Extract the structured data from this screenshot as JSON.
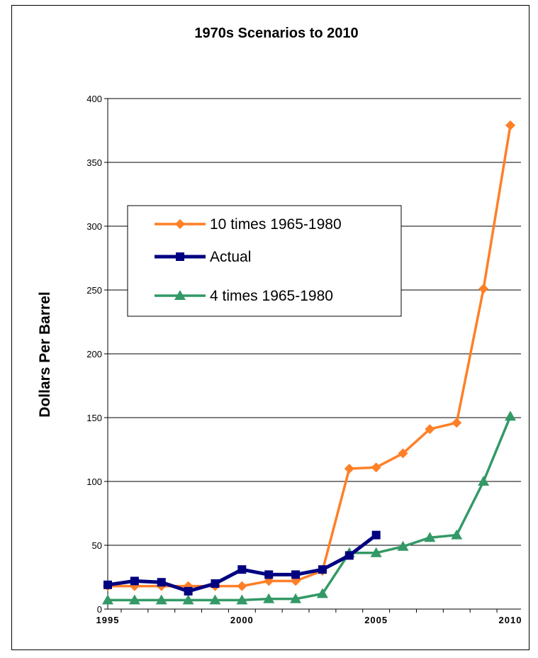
{
  "chart_data": {
    "type": "line",
    "title": "1970s Scenarios to 2010",
    "xlabel": "",
    "ylabel": "Dollars Per Barrel",
    "x": [
      1995,
      1996,
      1997,
      1998,
      1999,
      2000,
      2001,
      2002,
      2003,
      2004,
      2005,
      2006,
      2007,
      2008,
      2009,
      2010
    ],
    "xlim": [
      1995,
      2010
    ],
    "x_tick_labels": [
      "1995",
      "2000",
      "2005",
      "2010"
    ],
    "ylim": [
      0,
      400
    ],
    "y_tick_labels": [
      "0",
      "50",
      "100",
      "150",
      "200",
      "250",
      "300",
      "350",
      "400"
    ],
    "grid": "horizontal",
    "legend_placement": "upper-left inside plot",
    "series": [
      {
        "name": "10 times 1965-1980",
        "color": "#FF7F27",
        "marker": "diamond",
        "values": [
          18,
          18,
          18,
          18,
          18,
          18,
          22,
          22,
          30,
          110,
          111,
          122,
          141,
          146,
          251,
          379
        ]
      },
      {
        "name": "Actual",
        "color": "#000080",
        "marker": "square",
        "values": [
          19,
          22,
          21,
          14,
          20,
          31,
          27,
          27,
          31,
          42,
          58,
          null,
          null,
          null,
          null,
          null
        ]
      },
      {
        "name": "4 times 1965-1980",
        "color": "#339966",
        "marker": "triangle",
        "values": [
          7,
          7,
          7,
          7,
          7,
          7,
          8,
          8,
          12,
          44,
          44,
          49,
          56,
          58,
          100,
          151
        ]
      }
    ]
  }
}
